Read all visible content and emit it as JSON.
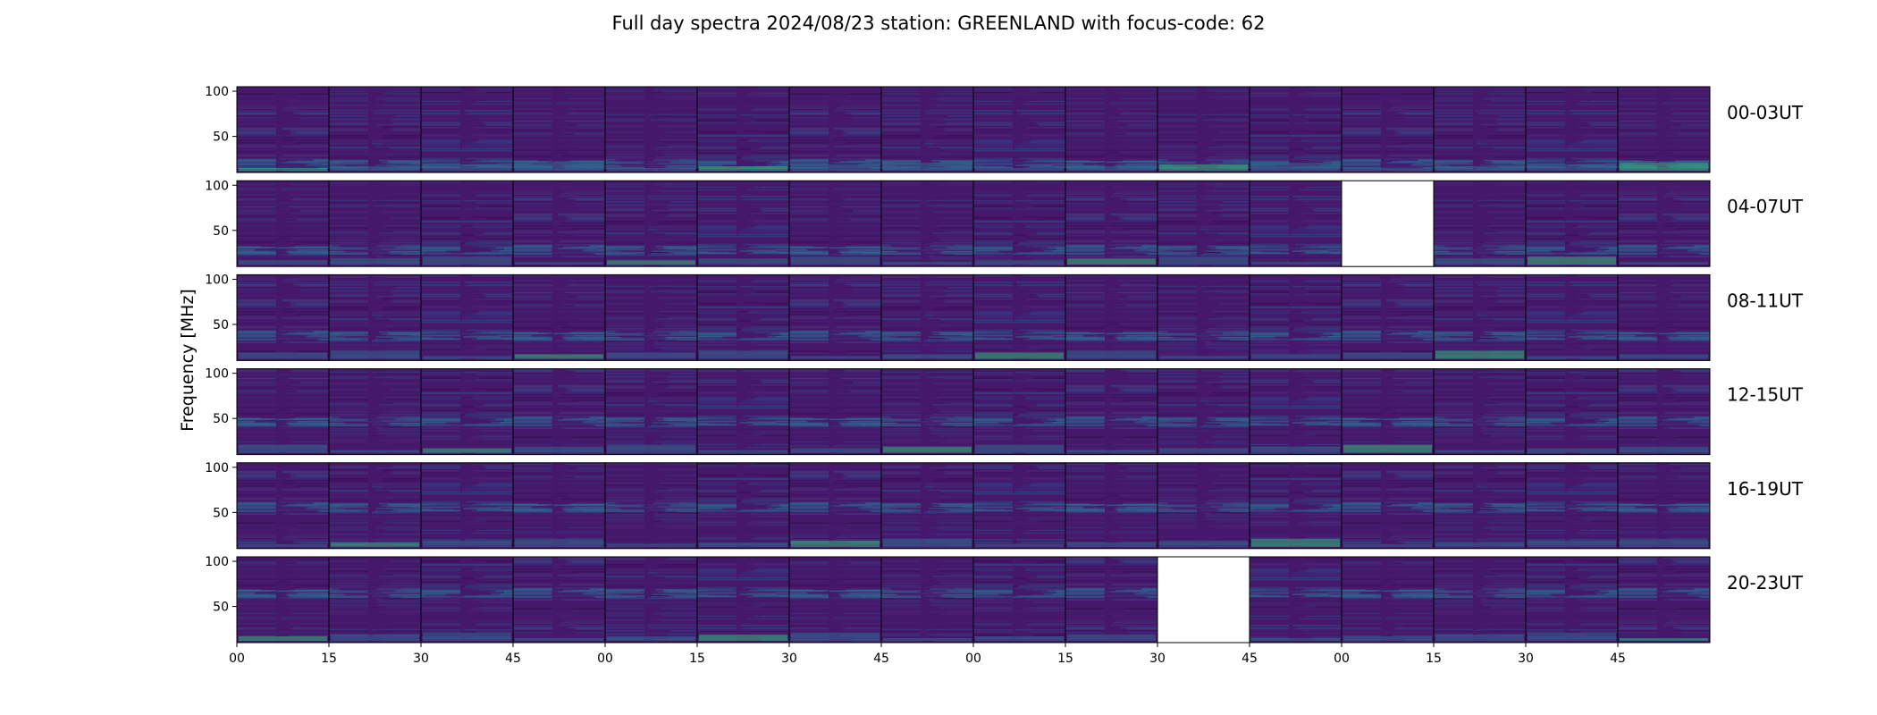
{
  "chart_data": {
    "type": "heatmap",
    "title": "Full day spectra 2024/08/23 station: GREENLAND with focus-code: 62",
    "ylabel": "Frequency [MHz]",
    "xlabel": "",
    "ylim": [
      10,
      105
    ],
    "yticks": [
      50,
      100
    ],
    "xtick_labels": [
      "00",
      "15",
      "30",
      "45",
      "00",
      "15",
      "30",
      "45",
      "00",
      "15",
      "30",
      "45",
      "00",
      "15",
      "30",
      "45"
    ],
    "grid": false,
    "colormap": "viridis",
    "colors": {
      "low": "#440154",
      "background": "#46186b",
      "mid": "#31688e",
      "high": "#35b779",
      "peak": "#5ec962"
    },
    "rows_per_panel": 16,
    "rows": [
      {
        "label": "00-03UT",
        "missing": []
      },
      {
        "label": "04-07UT",
        "missing": [
          12
        ]
      },
      {
        "label": "08-11UT",
        "missing": []
      },
      {
        "label": "12-15UT",
        "missing": []
      },
      {
        "label": "16-19UT",
        "missing": []
      },
      {
        "label": "20-23UT",
        "missing": [
          10
        ]
      }
    ]
  }
}
